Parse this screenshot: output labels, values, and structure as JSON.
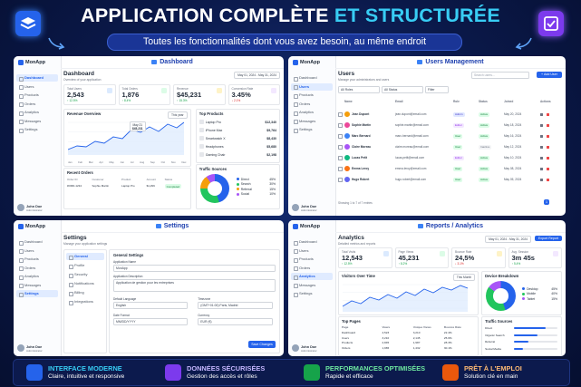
{
  "header": {
    "title_1": "APPLICATION COMPLÈTE",
    "title_2": "ET STRUCTURÉE",
    "subtitle": "Toutes les fonctionnalités dont vous avez besoin, au même endroit"
  },
  "sidebar": {
    "brand": "MonApp",
    "nav": [
      "Dashboard",
      "Users",
      "Products",
      "Orders",
      "Analytics",
      "Messages",
      "Settings"
    ],
    "user_name": "John Doe",
    "user_role": "Administrator"
  },
  "dashboard": {
    "title": "Dashboard",
    "heading": "Dashboard",
    "subtitle": "Overview of your application",
    "date": "May 01, 2024 - May 31, 2024",
    "stats": [
      {
        "label": "Total Users",
        "value": "2,543",
        "change": "↑ 12.5%",
        "color": "#16a34a"
      },
      {
        "label": "Total Orders",
        "value": "1,876",
        "change": "↑ 8.4%",
        "color": "#16a34a"
      },
      {
        "label": "Revenue",
        "value": "$45,231",
        "change": "↑ 15.3%",
        "color": "#16a34a"
      },
      {
        "label": "Conversion Rate",
        "value": "3.45%",
        "change": "↓ 2.1%",
        "color": "#dc2626"
      }
    ],
    "chart": {
      "title": "Revenue Overview",
      "period": "This year",
      "tooltip_date": "May 21",
      "tooltip_value": "$45,231",
      "months": [
        "Jan",
        "Feb",
        "Mar",
        "Apr",
        "May",
        "Jun",
        "Jul",
        "Aug",
        "Sep",
        "Oct",
        "Nov",
        "Dec"
      ]
    },
    "products": {
      "title": "Top Products",
      "items": [
        [
          "Laptop Pro",
          "$12,340"
        ],
        [
          "iPhone Max",
          "$9,764"
        ],
        [
          "Smartwatch X",
          "$8,430"
        ],
        [
          "Headphones",
          "$5,680"
        ],
        [
          "Gaming Chair",
          "$2,198"
        ]
      ]
    },
    "traffic": {
      "title": "Traffic Sources",
      "items": [
        [
          "Direct",
          "45%"
        ],
        [
          "Search",
          "30%"
        ],
        [
          "Referral",
          "15%"
        ],
        [
          "Social",
          "10%"
        ]
      ],
      "colors": [
        "#2563eb",
        "#22c55e",
        "#f59e0b",
        "#a855f7"
      ]
    },
    "orders": {
      "title": "Recent Orders",
      "columns": [
        "Order ID",
        "Customer",
        "Product",
        "Amount",
        "Status"
      ],
      "rows": [
        [
          "#ORD-1234",
          "Sophie Martin",
          "Laptop Pro",
          "$1,299",
          "Completed"
        ]
      ]
    }
  },
  "users": {
    "title": "Users Management",
    "heading": "Users",
    "subtitle": "Manage your administrators and users",
    "search": "Search users...",
    "add": "+ Add User",
    "filters": [
      "All Roles",
      "All Status",
      "Filter"
    ],
    "columns": [
      "Name",
      "Email",
      "Role",
      "Status",
      "Joined",
      "Actions"
    ],
    "rows": [
      [
        "Jean Dupont",
        "jean.dupont@email.com",
        "Admin",
        "Active",
        "May 20, 2024"
      ],
      [
        "Sophie Martin",
        "sophie.martin@email.com",
        "Editor",
        "Active",
        "May 18, 2024"
      ],
      [
        "Marc Bernard",
        "marc.bernard@email.com",
        "User",
        "Active",
        "May 16, 2024"
      ],
      [
        "Claire Moreau",
        "claire.moreau@email.com",
        "User",
        "Inactive",
        "May 12, 2024"
      ],
      [
        "Lucas Petit",
        "lucas.petit@email.com",
        "Editor",
        "Active",
        "May 10, 2024"
      ],
      [
        "Emma Leroy",
        "emma.leroy@email.com",
        "User",
        "Active",
        "May 08, 2024"
      ],
      [
        "Hugo Robert",
        "hugo.robert@email.com",
        "User",
        "Active",
        "May 05, 2024"
      ]
    ],
    "footer": "Showing 1 to 7 of 7 entries",
    "page": "1"
  },
  "settings": {
    "title": "Settings",
    "heading": "Settings",
    "subtitle": "Manage your application settings",
    "menu": [
      "General",
      "Profile",
      "Security",
      "Notifications",
      "Billing",
      "Integrations"
    ],
    "section": "General Settings",
    "fields": [
      [
        "Application Name",
        "MonApp"
      ],
      [
        "Application Description",
        "Application de gestion pour les entreprises"
      ],
      [
        "Default Language",
        "English"
      ],
      [
        "Timezone",
        "(GMT+01:00) Paris, Madrid"
      ],
      [
        "Date Format",
        "MM/DD/YYYY"
      ],
      [
        "Currency",
        "EUR (€)"
      ]
    ],
    "save": "Save Changes"
  },
  "reports": {
    "title": "Reports / Analytics",
    "heading": "Analytics",
    "subtitle": "Detailed metrics and reports",
    "date": "May 01, 2024 - May 31, 2024",
    "export": "Export Report",
    "stats": [
      {
        "label": "Total Visits",
        "value": "12,543",
        "change": "↑ 12.5%",
        "color": "#16a34a"
      },
      {
        "label": "Page Views",
        "value": "45,231",
        "change": "↑ 8.2%",
        "color": "#16a34a"
      },
      {
        "label": "Bounce Rate",
        "value": "24,5%",
        "change": "↓ 3.1%",
        "color": "#dc2626"
      },
      {
        "label": "Avg. Session",
        "value": "3m 45s",
        "change": "↑ 5.4%",
        "color": "#16a34a"
      }
    ],
    "chart": {
      "title": "Visitors Over Time",
      "period": "This Month"
    },
    "devices": {
      "title": "Device Breakdown",
      "items": [
        [
          "Desktop",
          "45%"
        ],
        [
          "Mobile",
          "40%"
        ],
        [
          "Tablet",
          "15%"
        ]
      ],
      "colors": [
        "#2563eb",
        "#22c55e",
        "#a855f7"
      ]
    },
    "pages": {
      "title": "Top Pages",
      "columns": [
        "Page",
        "Views",
        "Unique Views",
        "Bounce Rate"
      ],
      "rows": [
        [
          "Dashboard",
          "4,523",
          "3,210",
          "22.4%"
        ],
        [
          "Users",
          "3,210",
          "2,145",
          "25.6%"
        ],
        [
          "Products",
          "2,845",
          "1,987",
          "28.3%"
        ],
        [
          "Orders",
          "1,965",
          "1,432",
          "30.1%"
        ]
      ]
    },
    "sources": {
      "title": "Traffic Sources",
      "items": [
        "Direct",
        "Organic Search",
        "Referral",
        "Social Media"
      ]
    }
  },
  "features": [
    {
      "title": "INTERFACE MODERNE",
      "text": "Claire, intuitive et responsive"
    },
    {
      "title": "DONNÉES SÉCURISÉES",
      "text": "Gestion des accès et rôles"
    },
    {
      "title": "PERFORMANCES OPTIMISÉES",
      "text": "Rapide et efficace"
    },
    {
      "title": "PRÊT À L'EMPLOI",
      "text": "Solution clé en main"
    }
  ]
}
